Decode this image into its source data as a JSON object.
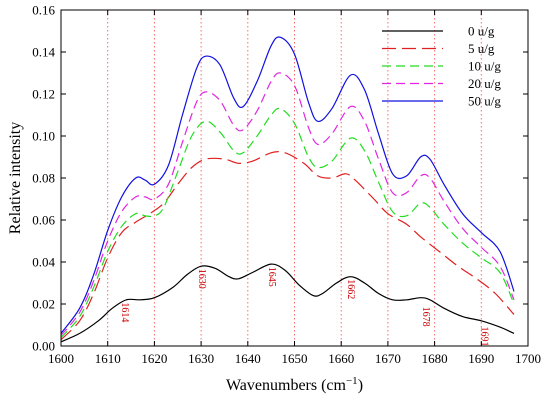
{
  "chart_data": {
    "type": "line",
    "title": "",
    "xlabel": "Wavenumbers (cm",
    "xlabel_sup": "−1",
    "xlabel_close": ")",
    "ylabel": "Relative intensity",
    "xlim": [
      1600,
      1700
    ],
    "ylim": [
      0,
      0.16
    ],
    "xticks": [
      1600,
      1610,
      1620,
      1630,
      1640,
      1650,
      1660,
      1670,
      1680,
      1690,
      1700
    ],
    "yticks": [
      0.0,
      0.02,
      0.04,
      0.06,
      0.08,
      0.1,
      0.12,
      0.14,
      0.16
    ],
    "ytick_labels": [
      "0.00",
      "0.02",
      "0.04",
      "0.06",
      "0.08",
      "0.10",
      "0.12",
      "0.14",
      "0.16"
    ],
    "grid": false,
    "legend_position": "top-right",
    "vlines": [
      1610,
      1620,
      1630,
      1640,
      1650,
      1660,
      1670,
      1680,
      1690
    ],
    "vline_color": "#ff6b6b",
    "peak_labels": [
      {
        "text": "1614",
        "x": 1613.5,
        "y": 0.016
      },
      {
        "text": "1630",
        "x": 1630,
        "y": 0.032
      },
      {
        "text": "1645",
        "x": 1645,
        "y": 0.033
      },
      {
        "text": "1662",
        "x": 1662,
        "y": 0.027
      },
      {
        "text": "1678",
        "x": 1678,
        "y": 0.014
      },
      {
        "text": "1691",
        "x": 1690.5,
        "y": 0.0045
      }
    ],
    "peak_label_color": "#d00000",
    "series": [
      {
        "name": "0 u/g",
        "color": "#000000",
        "dash": "solid",
        "points": [
          [
            1600,
            0.002
          ],
          [
            1604,
            0.006
          ],
          [
            1608,
            0.012
          ],
          [
            1611,
            0.018
          ],
          [
            1614,
            0.022
          ],
          [
            1617,
            0.022
          ],
          [
            1620,
            0.023
          ],
          [
            1624,
            0.028
          ],
          [
            1627,
            0.034
          ],
          [
            1630,
            0.038
          ],
          [
            1633,
            0.037
          ],
          [
            1636,
            0.033
          ],
          [
            1638,
            0.032
          ],
          [
            1641,
            0.035
          ],
          [
            1645,
            0.039
          ],
          [
            1648,
            0.036
          ],
          [
            1651,
            0.029
          ],
          [
            1654,
            0.024
          ],
          [
            1656,
            0.025
          ],
          [
            1659,
            0.03
          ],
          [
            1662,
            0.033
          ],
          [
            1665,
            0.03
          ],
          [
            1668,
            0.025
          ],
          [
            1671,
            0.022
          ],
          [
            1674,
            0.022
          ],
          [
            1677,
            0.023
          ],
          [
            1679,
            0.022
          ],
          [
            1682,
            0.018
          ],
          [
            1686,
            0.014
          ],
          [
            1690,
            0.012
          ],
          [
            1694,
            0.009
          ],
          [
            1697,
            0.006
          ]
        ]
      },
      {
        "name": "5 u/g",
        "color": "#e02020",
        "dash": "long",
        "points": [
          [
            1600,
            0.003
          ],
          [
            1604,
            0.012
          ],
          [
            1607,
            0.025
          ],
          [
            1610,
            0.042
          ],
          [
            1613,
            0.054
          ],
          [
            1616,
            0.059
          ],
          [
            1619,
            0.063
          ],
          [
            1622,
            0.068
          ],
          [
            1625,
            0.077
          ],
          [
            1628,
            0.085
          ],
          [
            1631,
            0.089
          ],
          [
            1635,
            0.089
          ],
          [
            1638,
            0.087
          ],
          [
            1641,
            0.088
          ],
          [
            1645,
            0.092
          ],
          [
            1648,
            0.092
          ],
          [
            1652,
            0.087
          ],
          [
            1655,
            0.081
          ],
          [
            1658,
            0.08
          ],
          [
            1661,
            0.082
          ],
          [
            1663,
            0.079
          ],
          [
            1667,
            0.07
          ],
          [
            1670,
            0.063
          ],
          [
            1674,
            0.058
          ],
          [
            1677,
            0.052
          ],
          [
            1681,
            0.045
          ],
          [
            1685,
            0.038
          ],
          [
            1689,
            0.032
          ],
          [
            1693,
            0.025
          ],
          [
            1697,
            0.015
          ]
        ]
      },
      {
        "name": "10 u/g",
        "color": "#22dd22",
        "dash": "medium",
        "points": [
          [
            1600,
            0.004
          ],
          [
            1604,
            0.014
          ],
          [
            1607,
            0.028
          ],
          [
            1610,
            0.045
          ],
          [
            1613,
            0.057
          ],
          [
            1616,
            0.063
          ],
          [
            1618,
            0.062
          ],
          [
            1620,
            0.062
          ],
          [
            1622,
            0.066
          ],
          [
            1625,
            0.083
          ],
          [
            1628,
            0.1
          ],
          [
            1631,
            0.107
          ],
          [
            1634,
            0.102
          ],
          [
            1637,
            0.093
          ],
          [
            1639,
            0.092
          ],
          [
            1642,
            0.1
          ],
          [
            1645,
            0.11
          ],
          [
            1647,
            0.113
          ],
          [
            1650,
            0.106
          ],
          [
            1653,
            0.09
          ],
          [
            1655,
            0.085
          ],
          [
            1658,
            0.088
          ],
          [
            1662,
            0.099
          ],
          [
            1665,
            0.093
          ],
          [
            1668,
            0.078
          ],
          [
            1671,
            0.064
          ],
          [
            1674,
            0.062
          ],
          [
            1677,
            0.068
          ],
          [
            1679,
            0.066
          ],
          [
            1682,
            0.058
          ],
          [
            1686,
            0.049
          ],
          [
            1690,
            0.042
          ],
          [
            1694,
            0.035
          ],
          [
            1697,
            0.02
          ]
        ]
      },
      {
        "name": "20 u/g",
        "color": "#e028e0",
        "dash": "medium",
        "points": [
          [
            1600,
            0.005
          ],
          [
            1604,
            0.016
          ],
          [
            1607,
            0.031
          ],
          [
            1610,
            0.05
          ],
          [
            1613,
            0.064
          ],
          [
            1616,
            0.071
          ],
          [
            1618,
            0.071
          ],
          [
            1620,
            0.07
          ],
          [
            1623,
            0.077
          ],
          [
            1626,
            0.097
          ],
          [
            1629,
            0.116
          ],
          [
            1631,
            0.121
          ],
          [
            1634,
            0.117
          ],
          [
            1637,
            0.105
          ],
          [
            1639,
            0.103
          ],
          [
            1642,
            0.112
          ],
          [
            1645,
            0.126
          ],
          [
            1647,
            0.13
          ],
          [
            1650,
            0.124
          ],
          [
            1653,
            0.104
          ],
          [
            1655,
            0.096
          ],
          [
            1658,
            0.101
          ],
          [
            1662,
            0.114
          ],
          [
            1665,
            0.107
          ],
          [
            1668,
            0.089
          ],
          [
            1671,
            0.073
          ],
          [
            1674,
            0.073
          ],
          [
            1677,
            0.081
          ],
          [
            1679,
            0.08
          ],
          [
            1682,
            0.069
          ],
          [
            1686,
            0.056
          ],
          [
            1690,
            0.047
          ],
          [
            1694,
            0.038
          ],
          [
            1697,
            0.022
          ]
        ]
      },
      {
        "name": "50 u/g",
        "color": "#1010e0",
        "dash": "solid",
        "points": [
          [
            1600,
            0.006
          ],
          [
            1604,
            0.018
          ],
          [
            1607,
            0.034
          ],
          [
            1610,
            0.055
          ],
          [
            1613,
            0.071
          ],
          [
            1616,
            0.08
          ],
          [
            1618,
            0.079
          ],
          [
            1620,
            0.077
          ],
          [
            1623,
            0.086
          ],
          [
            1626,
            0.11
          ],
          [
            1629,
            0.132
          ],
          [
            1631,
            0.138
          ],
          [
            1634,
            0.134
          ],
          [
            1637,
            0.118
          ],
          [
            1639,
            0.114
          ],
          [
            1642,
            0.126
          ],
          [
            1645,
            0.143
          ],
          [
            1647,
            0.147
          ],
          [
            1650,
            0.139
          ],
          [
            1653,
            0.116
          ],
          [
            1655,
            0.107
          ],
          [
            1658,
            0.113
          ],
          [
            1662,
            0.129
          ],
          [
            1665,
            0.122
          ],
          [
            1668,
            0.101
          ],
          [
            1671,
            0.082
          ],
          [
            1674,
            0.081
          ],
          [
            1677,
            0.09
          ],
          [
            1679,
            0.089
          ],
          [
            1682,
            0.077
          ],
          [
            1686,
            0.063
          ],
          [
            1690,
            0.054
          ],
          [
            1694,
            0.045
          ],
          [
            1697,
            0.026
          ]
        ]
      }
    ]
  }
}
